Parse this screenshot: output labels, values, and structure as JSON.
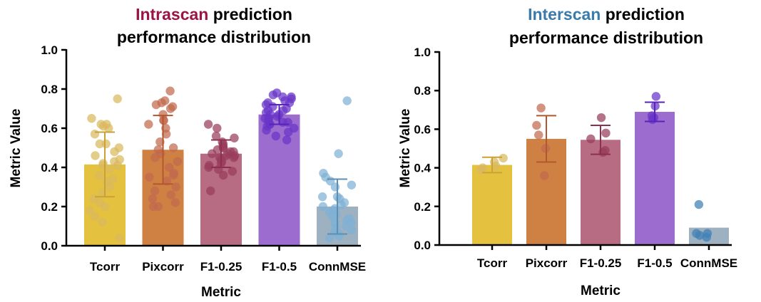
{
  "chart_data": [
    {
      "type": "bar",
      "title_highlight": "Intrascan",
      "title_rest_line1": " prediction",
      "title_line2": "performance distribution",
      "title_highlight_color": "#9b1444",
      "xlabel": "Metric",
      "ylabel": "Metric Value",
      "ylim": [
        0,
        1.0
      ],
      "yticks": [
        "0.0",
        "0.2",
        "0.4",
        "0.6",
        "0.8",
        "1.0"
      ],
      "categories": [
        "Tcorr",
        "Pixcorr",
        "F1-0.25",
        "F1-0.5",
        "ConnMSE"
      ],
      "values": [
        0.415,
        0.49,
        0.47,
        0.67,
        0.2
      ],
      "errors": [
        0.165,
        0.175,
        0.07,
        0.05,
        0.14
      ],
      "bar_colors": [
        "#e4c13f",
        "#cf8043",
        "#b86c84",
        "#9c6dcf",
        "#9eb1c1"
      ],
      "dot_colors": [
        "#d9b85e",
        "#c06a4e",
        "#983d5c",
        "#6a35c7",
        "#7fb2d4"
      ],
      "points": [
        [
          0.75,
          0.65,
          0.62,
          0.62,
          0.61,
          0.6,
          0.57,
          0.52,
          0.52,
          0.5,
          0.48,
          0.46,
          0.44,
          0.43,
          0.42,
          0.41,
          0.41,
          0.39,
          0.36,
          0.34,
          0.33,
          0.3,
          0.27,
          0.24,
          0.22,
          0.2,
          0.18,
          0.15,
          0.12,
          0.04
        ],
        [
          0.79,
          0.74,
          0.73,
          0.72,
          0.71,
          0.7,
          0.67,
          0.64,
          0.64,
          0.62,
          0.6,
          0.57,
          0.53,
          0.5,
          0.49,
          0.47,
          0.45,
          0.43,
          0.4,
          0.37,
          0.36,
          0.35,
          0.33,
          0.3,
          0.28,
          0.26,
          0.24,
          0.22,
          0.2,
          0.2
        ],
        [
          0.62,
          0.6,
          0.56,
          0.55,
          0.53,
          0.52,
          0.51,
          0.5,
          0.5,
          0.49,
          0.48,
          0.48,
          0.47,
          0.47,
          0.46,
          0.46,
          0.45,
          0.45,
          0.44,
          0.43,
          0.42,
          0.41,
          0.4,
          0.39,
          0.38,
          0.36,
          0.28
        ],
        [
          0.78,
          0.77,
          0.76,
          0.76,
          0.75,
          0.74,
          0.73,
          0.73,
          0.72,
          0.71,
          0.7,
          0.69,
          0.69,
          0.68,
          0.67,
          0.67,
          0.66,
          0.65,
          0.65,
          0.64,
          0.63,
          0.63,
          0.62,
          0.62,
          0.61,
          0.6,
          0.59,
          0.58,
          0.56,
          0.54
        ],
        [
          0.74,
          0.47,
          0.37,
          0.35,
          0.33,
          0.31,
          0.3,
          0.25,
          0.25,
          0.24,
          0.22,
          0.21,
          0.2,
          0.19,
          0.18,
          0.17,
          0.16,
          0.15,
          0.14,
          0.13,
          0.12,
          0.12,
          0.11,
          0.1,
          0.09,
          0.08,
          0.07,
          0.06,
          0.05,
          0.04
        ]
      ]
    },
    {
      "type": "bar",
      "title_highlight": "Interscan",
      "title_rest_line1": " prediction",
      "title_line2": "performance distribution",
      "title_highlight_color": "#3a7bab",
      "xlabel": "Metric",
      "ylabel": "Metric Value",
      "ylim": [
        0,
        1.0
      ],
      "yticks": [
        "0.0",
        "0.2",
        "0.4",
        "0.6",
        "0.8",
        "1.0"
      ],
      "categories": [
        "Tcorr",
        "Pixcorr",
        "F1-0.25",
        "F1-0.5",
        "ConnMSE"
      ],
      "values": [
        0.415,
        0.55,
        0.545,
        0.69,
        0.09
      ],
      "errors": [
        0.04,
        0.12,
        0.075,
        0.05,
        0.0
      ],
      "bar_colors": [
        "#e4c13f",
        "#cf8043",
        "#b86c84",
        "#9c6dcf",
        "#9eb1c1"
      ],
      "dot_colors": [
        "#d9b85e",
        "#c06a4e",
        "#983d5c",
        "#6a35c7",
        "#3f7fb5"
      ],
      "points": [
        [
          0.45,
          0.43,
          0.41,
          0.4,
          0.39
        ],
        [
          0.71,
          0.62,
          0.57,
          0.5,
          0.36
        ],
        [
          0.66,
          0.58,
          0.55,
          0.49,
          0.48
        ],
        [
          0.77,
          0.72,
          0.67,
          0.66,
          0.65
        ],
        [
          0.21,
          0.06,
          0.06,
          0.05,
          0.04
        ]
      ]
    }
  ]
}
